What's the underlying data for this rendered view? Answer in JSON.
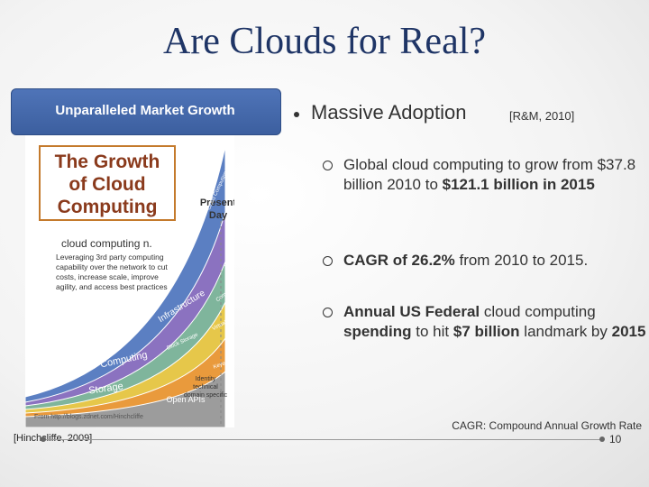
{
  "title": "Are Clouds for Real?",
  "left_panel": {
    "heading": "Unparalleled Market Growth",
    "citation": "[Hinchcliffe, 2009]",
    "image": {
      "title_lines": [
        "The Growth",
        "of Cloud",
        "Computing"
      ],
      "marker_lines": [
        "Present",
        "Day"
      ],
      "term": "cloud computing n.",
      "definition_lines": [
        "Leveraging 3rd party computing",
        "capability over the network to cut",
        "costs, increase scale, improve",
        "agility, and access best practices"
      ],
      "layers": [
        "Storage",
        "Computing",
        "Keyed Storage",
        "Block Storage",
        "Virtual Instances",
        "Computing Fabric",
        "Infrastructure",
        "Hosting",
        "Services",
        "Network",
        "Cloud Computing Platforms",
        "Open APIs"
      ],
      "identity_lines": [
        "Identity",
        "technical",
        "domain specific"
      ],
      "source": "From http://blogs.zdnet.com/Hinchcliffe"
    }
  },
  "main_bullet": {
    "text": "Massive Adoption",
    "citation": "[R&M, 2010]"
  },
  "sub_bullets": [
    [
      {
        "text": "Global cloud computing to grow from $37.8 billion 2010 to "
      },
      {
        "text": "$121.1 billion in 2015",
        "bold": true
      }
    ],
    [
      {
        "text": "CAGR of 26.2%",
        "bold": true
      },
      {
        "text": " from 2010 to 2015."
      }
    ],
    [
      {
        "text": "Annual US Federal",
        "bold": true
      },
      {
        "text": " cloud computing "
      },
      {
        "text": "spending",
        "bold": true
      },
      {
        "text": " to hit "
      },
      {
        "text": "$7 billion",
        "bold": true
      },
      {
        "text": " landmark by "
      },
      {
        "text": "2015",
        "bold": true
      }
    ]
  ],
  "footnote": "CAGR: Compound Annual Growth Rate",
  "page_number": "10"
}
